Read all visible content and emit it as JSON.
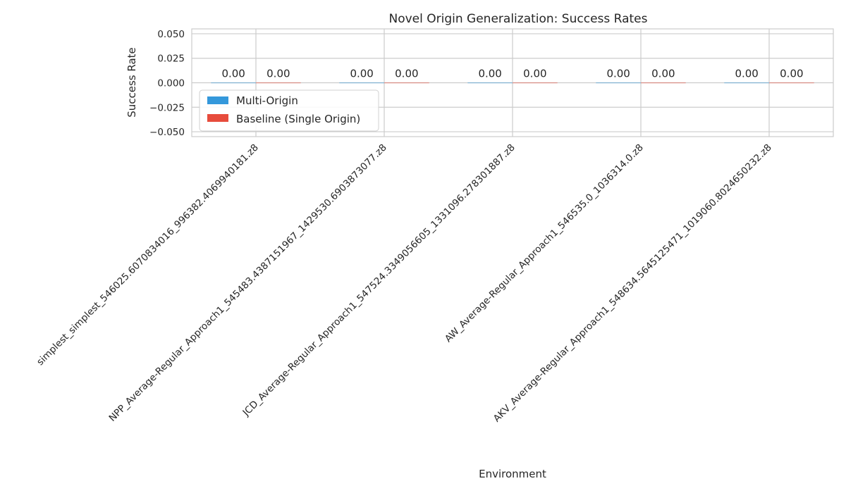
{
  "chart_data": {
    "type": "bar",
    "title": "Novel Origin Generalization: Success Rates",
    "xlabel": "Environment",
    "ylabel": "Success Rate",
    "ylim": [
      -0.055,
      0.055
    ],
    "yticks": [
      -0.05,
      -0.025,
      0.0,
      0.025,
      0.05
    ],
    "ytick_labels": [
      "−0.050",
      "−0.025",
      "0.000",
      "0.025",
      "0.050"
    ],
    "grid": true,
    "legend_position": "left",
    "categories": [
      "simplest_simplest_546025.6070834016_996382.4069940181.z8",
      "NPP_Average-Regular_Approach1_545483.4387151967_1429530.6903873077.z8",
      "JCD_Average-Regular_Approach1_547524.3349056605_1331096.278301887.z8",
      "AW_Average-Regular_Approach1_546535.0_1036314.0.z8",
      "AKV_Average-Regular_Approach1_548634.5645125471_1019060.8024650232.z8"
    ],
    "series": [
      {
        "name": "Multi-Origin",
        "color": "#3498db",
        "values": [
          0,
          0,
          0,
          0,
          0
        ],
        "labels": [
          "0.00",
          "0.00",
          "0.00",
          "0.00",
          "0.00"
        ]
      },
      {
        "name": "Baseline (Single Origin)",
        "color": "#e74c3c",
        "values": [
          0,
          0,
          0,
          0,
          0
        ],
        "labels": [
          "0.00",
          "0.00",
          "0.00",
          "0.00",
          "0.00"
        ]
      }
    ]
  }
}
